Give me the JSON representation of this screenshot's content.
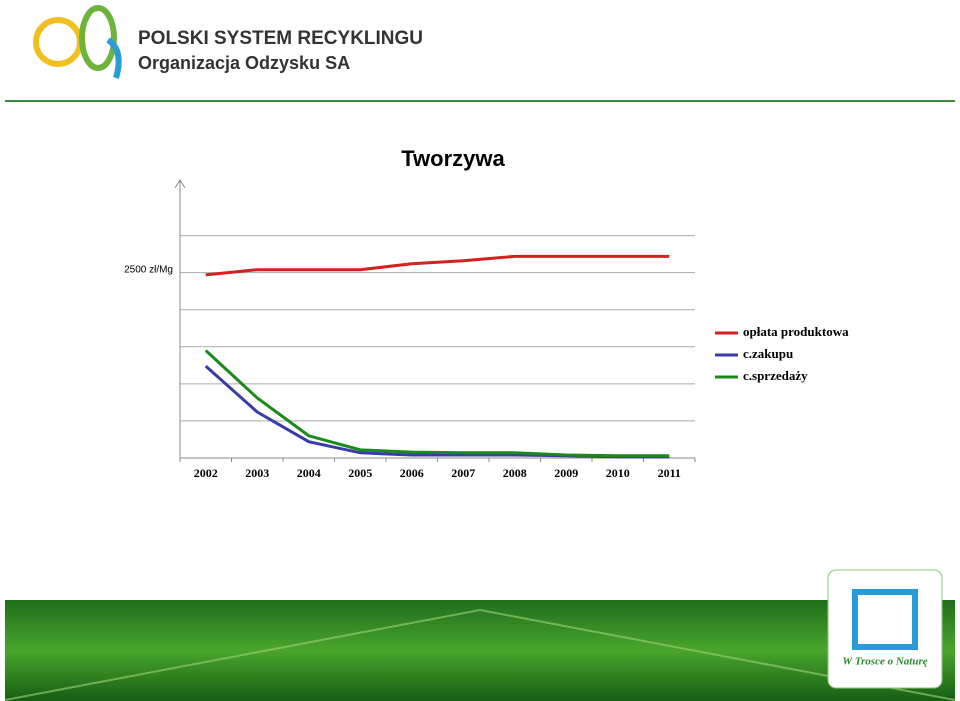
{
  "header": {
    "line1": "POLSKI SYSTEM RECYKLINGU",
    "line2": "Organizacja Odzysku SA"
  },
  "chart_data": {
    "type": "line",
    "title": "Tworzywa",
    "categories": [
      "2002",
      "2003",
      "2004",
      "2005",
      "2006",
      "2007",
      "2008",
      "2009",
      "2010",
      "2011"
    ],
    "series": [
      {
        "name": "opłata produktowa",
        "color": "#d42020",
        "values": [
          2470,
          2540,
          2540,
          2540,
          2620,
          2660,
          2720,
          2720,
          2720,
          2720
        ]
      },
      {
        "name": "c.zakupu",
        "color": "#3a3aa8",
        "values": [
          1240,
          620,
          220,
          70,
          40,
          40,
          40,
          30,
          15,
          15
        ]
      },
      {
        "name": "c.sprzedaży",
        "color": "#1a8a1a",
        "values": [
          1450,
          810,
          300,
          110,
          80,
          70,
          70,
          40,
          30,
          30
        ]
      }
    ],
    "ylim": [
      0,
      3750
    ],
    "yticks": [
      {
        "value": 500,
        "label": null
      },
      {
        "value": 1000,
        "label": null
      },
      {
        "value": 1500,
        "label": null
      },
      {
        "value": 2000,
        "label": null
      },
      {
        "value": 2500,
        "label": "2500 zł/Mg"
      },
      {
        "value": 3000,
        "label": null
      }
    ],
    "grid": true,
    "legend": "right"
  },
  "footer": {
    "badge": "W Trosce o Naturę"
  }
}
